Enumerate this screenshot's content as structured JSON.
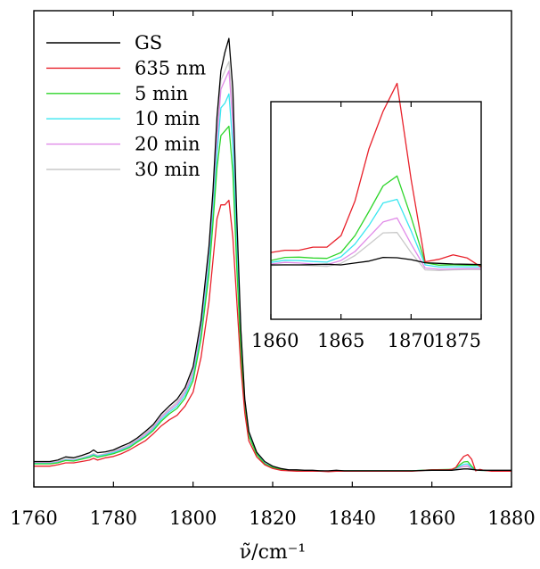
{
  "chart_data": [
    {
      "type": "line",
      "title": "",
      "xlabel": "ν̃/cm⁻¹",
      "ylabel": "",
      "xlim": [
        1760,
        1880
      ],
      "xticks": [
        1760,
        1780,
        1800,
        1820,
        1840,
        1860,
        1880
      ],
      "ylim": [
        0,
        1.03
      ],
      "grid": false,
      "legend_position": "top-left",
      "series": [
        {
          "name": "GS",
          "color": "#000000",
          "x": [
            1760,
            1764,
            1766,
            1768,
            1770,
            1772,
            1774,
            1775,
            1776,
            1778,
            1780,
            1782,
            1784,
            1786,
            1788,
            1790,
            1792,
            1794,
            1796,
            1798,
            1800,
            1802,
            1804,
            1805,
            1806,
            1807,
            1808,
            1809,
            1810,
            1811,
            1812,
            1813,
            1814,
            1816,
            1818,
            1820,
            1822,
            1824,
            1826,
            1828,
            1830,
            1832,
            1834,
            1836,
            1838,
            1840,
            1845,
            1850,
            1855,
            1860,
            1865,
            1867,
            1868,
            1869,
            1870,
            1872,
            1875,
            1880
          ],
          "y": [
            0.055,
            0.055,
            0.058,
            0.065,
            0.063,
            0.068,
            0.074,
            0.08,
            0.074,
            0.076,
            0.08,
            0.088,
            0.095,
            0.106,
            0.12,
            0.135,
            0.158,
            0.175,
            0.19,
            0.215,
            0.26,
            0.36,
            0.52,
            0.64,
            0.8,
            0.9,
            0.94,
            0.97,
            0.86,
            0.58,
            0.34,
            0.19,
            0.12,
            0.075,
            0.055,
            0.045,
            0.04,
            0.037,
            0.037,
            0.036,
            0.036,
            0.035,
            0.035,
            0.036,
            0.035,
            0.035,
            0.035,
            0.035,
            0.035,
            0.036,
            0.036,
            0.038,
            0.039,
            0.039,
            0.038,
            0.036,
            0.036,
            0.036
          ]
        },
        {
          "name": "635 nm",
          "color": "#e8202a",
          "x": [
            1760,
            1764,
            1766,
            1768,
            1770,
            1772,
            1774,
            1775,
            1776,
            1778,
            1780,
            1782,
            1784,
            1786,
            1788,
            1790,
            1792,
            1794,
            1796,
            1798,
            1800,
            1802,
            1804,
            1805,
            1806,
            1807,
            1808,
            1809,
            1810,
            1811,
            1812,
            1813,
            1814,
            1816,
            1818,
            1820,
            1822,
            1824,
            1826,
            1828,
            1830,
            1832,
            1834,
            1836,
            1838,
            1840,
            1845,
            1850,
            1855,
            1860,
            1864,
            1865,
            1866,
            1867,
            1868,
            1869,
            1870,
            1871,
            1872,
            1873,
            1875,
            1880
          ],
          "y": [
            0.045,
            0.045,
            0.048,
            0.052,
            0.052,
            0.055,
            0.058,
            0.062,
            0.058,
            0.063,
            0.066,
            0.072,
            0.08,
            0.09,
            0.1,
            0.115,
            0.132,
            0.145,
            0.155,
            0.175,
            0.205,
            0.28,
            0.4,
            0.49,
            0.58,
            0.61,
            0.61,
            0.62,
            0.54,
            0.4,
            0.26,
            0.16,
            0.1,
            0.065,
            0.048,
            0.04,
            0.036,
            0.035,
            0.034,
            0.034,
            0.034,
            0.034,
            0.033,
            0.034,
            0.034,
            0.034,
            0.034,
            0.034,
            0.034,
            0.037,
            0.037,
            0.038,
            0.042,
            0.055,
            0.066,
            0.07,
            0.06,
            0.035,
            0.038,
            0.036,
            0.034,
            0.034
          ]
        },
        {
          "name": "5 min",
          "color": "#2ed52a",
          "x": [
            1760,
            1764,
            1766,
            1768,
            1770,
            1772,
            1774,
            1775,
            1776,
            1778,
            1780,
            1782,
            1784,
            1786,
            1788,
            1790,
            1792,
            1794,
            1796,
            1798,
            1800,
            1802,
            1804,
            1805,
            1806,
            1807,
            1808,
            1809,
            1810,
            1811,
            1812,
            1813,
            1814,
            1816,
            1818,
            1820,
            1822,
            1824,
            1826,
            1828,
            1830,
            1832,
            1834,
            1836,
            1838,
            1840,
            1845,
            1850,
            1855,
            1860,
            1865,
            1866,
            1867,
            1868,
            1869,
            1870,
            1871,
            1872,
            1875,
            1880
          ],
          "y": [
            0.05,
            0.05,
            0.052,
            0.057,
            0.056,
            0.06,
            0.064,
            0.068,
            0.064,
            0.068,
            0.072,
            0.078,
            0.085,
            0.097,
            0.108,
            0.122,
            0.142,
            0.158,
            0.17,
            0.192,
            0.23,
            0.32,
            0.46,
            0.57,
            0.69,
            0.76,
            0.77,
            0.78,
            0.68,
            0.47,
            0.29,
            0.17,
            0.11,
            0.07,
            0.05,
            0.042,
            0.038,
            0.036,
            0.035,
            0.035,
            0.035,
            0.035,
            0.034,
            0.035,
            0.035,
            0.035,
            0.035,
            0.035,
            0.035,
            0.037,
            0.038,
            0.041,
            0.048,
            0.054,
            0.055,
            0.045,
            0.036,
            0.036,
            0.035,
            0.035
          ]
        },
        {
          "name": "10 min",
          "color": "#39e6f0",
          "x": [
            1760,
            1764,
            1766,
            1768,
            1770,
            1772,
            1774,
            1775,
            1776,
            1778,
            1780,
            1782,
            1784,
            1786,
            1788,
            1790,
            1792,
            1794,
            1796,
            1798,
            1800,
            1802,
            1804,
            1805,
            1806,
            1807,
            1808,
            1809,
            1810,
            1811,
            1812,
            1813,
            1814,
            1816,
            1818,
            1820,
            1822,
            1824,
            1826,
            1828,
            1830,
            1832,
            1834,
            1836,
            1838,
            1840,
            1845,
            1850,
            1855,
            1860,
            1865,
            1866,
            1867,
            1868,
            1869,
            1870,
            1871,
            1872,
            1875,
            1880
          ],
          "y": [
            0.051,
            0.051,
            0.053,
            0.058,
            0.057,
            0.061,
            0.066,
            0.07,
            0.066,
            0.07,
            0.074,
            0.08,
            0.087,
            0.099,
            0.11,
            0.125,
            0.146,
            0.162,
            0.175,
            0.198,
            0.238,
            0.33,
            0.48,
            0.59,
            0.72,
            0.82,
            0.83,
            0.85,
            0.74,
            0.51,
            0.31,
            0.18,
            0.115,
            0.072,
            0.051,
            0.043,
            0.038,
            0.036,
            0.035,
            0.035,
            0.035,
            0.035,
            0.034,
            0.035,
            0.035,
            0.035,
            0.035,
            0.035,
            0.035,
            0.037,
            0.037,
            0.04,
            0.045,
            0.049,
            0.05,
            0.042,
            0.036,
            0.036,
            0.035,
            0.035
          ]
        },
        {
          "name": "20 min",
          "color": "#e08ae8",
          "x": [
            1760,
            1764,
            1766,
            1768,
            1770,
            1772,
            1774,
            1775,
            1776,
            1778,
            1780,
            1782,
            1784,
            1786,
            1788,
            1790,
            1792,
            1794,
            1796,
            1798,
            1800,
            1802,
            1804,
            1805,
            1806,
            1807,
            1808,
            1809,
            1810,
            1811,
            1812,
            1813,
            1814,
            1816,
            1818,
            1820,
            1822,
            1824,
            1826,
            1828,
            1830,
            1832,
            1834,
            1836,
            1838,
            1840,
            1845,
            1850,
            1855,
            1860,
            1865,
            1866,
            1867,
            1868,
            1869,
            1870,
            1871,
            1872,
            1875,
            1880
          ],
          "y": [
            0.052,
            0.052,
            0.054,
            0.059,
            0.058,
            0.062,
            0.067,
            0.071,
            0.067,
            0.071,
            0.075,
            0.082,
            0.089,
            0.101,
            0.113,
            0.128,
            0.15,
            0.166,
            0.18,
            0.204,
            0.246,
            0.34,
            0.49,
            0.61,
            0.75,
            0.86,
            0.88,
            0.9,
            0.79,
            0.54,
            0.325,
            0.185,
            0.118,
            0.073,
            0.052,
            0.043,
            0.038,
            0.036,
            0.035,
            0.035,
            0.035,
            0.035,
            0.034,
            0.035,
            0.035,
            0.035,
            0.035,
            0.035,
            0.035,
            0.037,
            0.037,
            0.039,
            0.043,
            0.045,
            0.046,
            0.04,
            0.036,
            0.036,
            0.035,
            0.035
          ]
        },
        {
          "name": "30 min",
          "color": "#c9c9c9",
          "x": [
            1760,
            1764,
            1766,
            1768,
            1770,
            1772,
            1774,
            1775,
            1776,
            1778,
            1780,
            1782,
            1784,
            1786,
            1788,
            1790,
            1792,
            1794,
            1796,
            1798,
            1800,
            1802,
            1804,
            1805,
            1806,
            1807,
            1808,
            1809,
            1810,
            1811,
            1812,
            1813,
            1814,
            1816,
            1818,
            1820,
            1822,
            1824,
            1826,
            1828,
            1830,
            1832,
            1834,
            1836,
            1838,
            1840,
            1845,
            1850,
            1855,
            1860,
            1865,
            1866,
            1867,
            1868,
            1869,
            1870,
            1871,
            1872,
            1875,
            1880
          ],
          "y": [
            0.053,
            0.053,
            0.055,
            0.06,
            0.059,
            0.063,
            0.068,
            0.072,
            0.068,
            0.072,
            0.077,
            0.084,
            0.091,
            0.103,
            0.116,
            0.131,
            0.153,
            0.169,
            0.184,
            0.208,
            0.252,
            0.35,
            0.5,
            0.62,
            0.76,
            0.88,
            0.9,
            0.92,
            0.81,
            0.56,
            0.335,
            0.19,
            0.12,
            0.074,
            0.053,
            0.044,
            0.039,
            0.036,
            0.035,
            0.035,
            0.035,
            0.035,
            0.034,
            0.035,
            0.035,
            0.035,
            0.035,
            0.035,
            0.035,
            0.037,
            0.037,
            0.039,
            0.042,
            0.044,
            0.044,
            0.039,
            0.036,
            0.036,
            0.035,
            0.035
          ]
        }
      ]
    },
    {
      "type": "line",
      "title": "",
      "xlabel": "",
      "ylabel": "",
      "xlim": [
        1860,
        1875
      ],
      "xticks": [
        1860,
        1865,
        1870,
        1875
      ],
      "ylim": [
        0.018,
        0.088
      ],
      "grid": false,
      "series": [
        {
          "name": "GS",
          "color": "#000000",
          "x": [
            1860,
            1861,
            1862,
            1863,
            1864,
            1865,
            1866,
            1867,
            1868,
            1869,
            1870,
            1871,
            1872,
            1873,
            1874,
            1875
          ],
          "y": [
            0.0355,
            0.0355,
            0.0355,
            0.0356,
            0.0357,
            0.0355,
            0.0361,
            0.0367,
            0.0379,
            0.0378,
            0.0372,
            0.0362,
            0.036,
            0.0358,
            0.0357,
            0.0356
          ]
        },
        {
          "name": "635 nm",
          "color": "#e8202a",
          "x": [
            1860,
            1861,
            1862,
            1863,
            1864,
            1865,
            1866,
            1867,
            1868,
            1869,
            1870,
            1871,
            1872,
            1873,
            1874,
            1875
          ],
          "y": [
            0.0395,
            0.0402,
            0.0402,
            0.0412,
            0.0412,
            0.0449,
            0.0561,
            0.0729,
            0.0849,
            0.0939,
            0.0631,
            0.0365,
            0.0373,
            0.0387,
            0.0377,
            0.0348
          ]
        },
        {
          "name": "5 min",
          "color": "#2ed52a",
          "x": [
            1860,
            1861,
            1862,
            1863,
            1864,
            1865,
            1866,
            1867,
            1868,
            1869,
            1870,
            1871,
            1872,
            1873,
            1874,
            1875
          ],
          "y": [
            0.0369,
            0.0379,
            0.038,
            0.0377,
            0.0376,
            0.0395,
            0.0449,
            0.0527,
            0.0609,
            0.0641,
            0.0509,
            0.0362,
            0.0354,
            0.0355,
            0.0354,
            0.0354
          ]
        },
        {
          "name": "10 min",
          "color": "#39e6f0",
          "x": [
            1860,
            1861,
            1862,
            1863,
            1864,
            1865,
            1866,
            1867,
            1868,
            1869,
            1870,
            1871,
            1872,
            1873,
            1874,
            1875
          ],
          "y": [
            0.0363,
            0.037,
            0.0369,
            0.0366,
            0.0364,
            0.0381,
            0.0422,
            0.0482,
            0.0554,
            0.0566,
            0.0465,
            0.0355,
            0.0348,
            0.0349,
            0.0349,
            0.0349
          ]
        },
        {
          "name": "20 min",
          "color": "#e08ae8",
          "x": [
            1860,
            1861,
            1862,
            1863,
            1864,
            1865,
            1866,
            1867,
            1868,
            1869,
            1870,
            1871,
            1872,
            1873,
            1874,
            1875
          ],
          "y": [
            0.0358,
            0.0363,
            0.0361,
            0.0358,
            0.0356,
            0.0369,
            0.0398,
            0.0445,
            0.0493,
            0.0506,
            0.0422,
            0.0345,
            0.0341,
            0.0342,
            0.0343,
            0.0343
          ]
        },
        {
          "name": "30 min",
          "color": "#c9c9c9",
          "x": [
            1860,
            1861,
            1862,
            1863,
            1864,
            1865,
            1866,
            1867,
            1868,
            1869,
            1870,
            1871,
            1872,
            1873,
            1874,
            1875
          ],
          "y": [
            0.0353,
            0.0356,
            0.0355,
            0.0352,
            0.035,
            0.036,
            0.0385,
            0.0421,
            0.0458,
            0.0459,
            0.0395,
            0.0339,
            0.0337,
            0.0339,
            0.034,
            0.034
          ]
        }
      ]
    }
  ]
}
